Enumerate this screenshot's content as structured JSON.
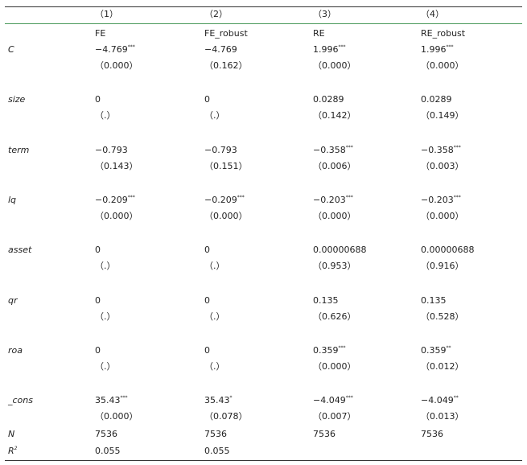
{
  "header": {
    "columns": [
      "（1）",
      "（2）",
      "（3）",
      "（4）"
    ],
    "models": [
      "FE",
      "FE_robust",
      "RE",
      "RE_robust"
    ]
  },
  "rows": [
    {
      "label": "C",
      "coef": [
        {
          "v": "−4.769",
          "stars": "***"
        },
        {
          "v": "−4.769"
        },
        {
          "v": "1.996",
          "stars": "***"
        },
        {
          "v": "1.996",
          "stars": "***"
        }
      ],
      "se": [
        "（0.000）",
        "（0.162）",
        "（0.000）",
        "（0.000）"
      ]
    },
    {
      "label": "size",
      "coef": [
        {
          "v": "0"
        },
        {
          "v": "0"
        },
        {
          "v": "0.0289"
        },
        {
          "v": "0.0289"
        }
      ],
      "se": [
        "（.）",
        "（.）",
        "（0.142）",
        "（0.149）"
      ]
    },
    {
      "label": "term",
      "coef": [
        {
          "v": "−0.793"
        },
        {
          "v": "−0.793"
        },
        {
          "v": "−0.358",
          "stars": "***"
        },
        {
          "v": "−0.358",
          "stars": "***"
        }
      ],
      "se": [
        "（0.143）",
        "（0.151）",
        "（0.006）",
        "（0.003）"
      ]
    },
    {
      "label": "lq",
      "coef": [
        {
          "v": "−0.209",
          "stars": "***"
        },
        {
          "v": "−0.209",
          "stars": "***"
        },
        {
          "v": "−0.203",
          "stars": "***"
        },
        {
          "v": "−0.203",
          "stars": "***"
        }
      ],
      "se": [
        "（0.000）",
        "（0.000）",
        "（0.000）",
        "（0.000）"
      ]
    },
    {
      "label": "asset",
      "coef": [
        {
          "v": "0"
        },
        {
          "v": "0"
        },
        {
          "v": "0.00000688"
        },
        {
          "v": "0.00000688"
        }
      ],
      "se": [
        "（.）",
        "（.）",
        "（0.953）",
        "（0.916）"
      ]
    },
    {
      "label": "qr",
      "coef": [
        {
          "v": "0"
        },
        {
          "v": "0"
        },
        {
          "v": "0.135"
        },
        {
          "v": "0.135"
        }
      ],
      "se": [
        "（.）",
        "（.）",
        "（0.626）",
        "（0.528）"
      ]
    },
    {
      "label": "roa",
      "coef": [
        {
          "v": "0"
        },
        {
          "v": "0"
        },
        {
          "v": "0.359",
          "stars": "***"
        },
        {
          "v": "0.359",
          "stars": "**"
        }
      ],
      "se": [
        "（.）",
        "（.）",
        "（0.000）",
        "（0.012）"
      ]
    },
    {
      "label": "_cons",
      "coef": [
        {
          "v": "35.43",
          "stars": "***"
        },
        {
          "v": "35.43",
          "stars": "*"
        },
        {
          "v": "−4.049",
          "stars": "***"
        },
        {
          "v": "−4.049",
          "stars": "**"
        }
      ],
      "se": [
        "（0.000）",
        "（0.078）",
        "（0.007）",
        "（0.013）"
      ]
    }
  ],
  "stats": [
    {
      "label": "N",
      "values": [
        "7536",
        "7536",
        "7536",
        "7536"
      ]
    },
    {
      "label": "R",
      "sup": "2",
      "values": [
        "0.055",
        "0.055",
        null,
        null
      ]
    }
  ]
}
